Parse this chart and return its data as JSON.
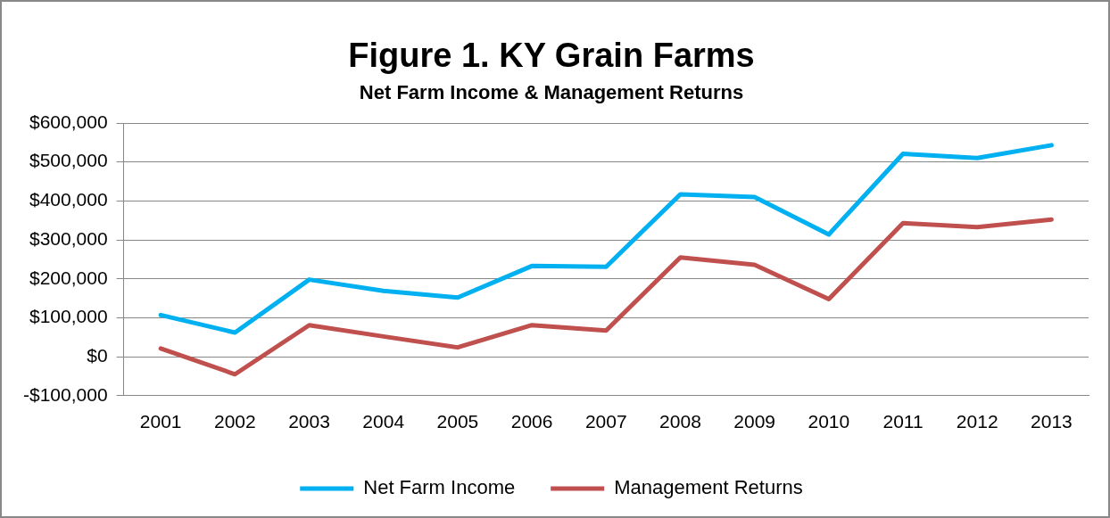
{
  "chart_data": {
    "type": "line",
    "title": "Figure 1. KY Grain Farms",
    "subtitle": "Net Farm Income & Management Returns",
    "categories": [
      "2001",
      "2002",
      "2003",
      "2004",
      "2005",
      "2006",
      "2007",
      "2008",
      "2009",
      "2010",
      "2011",
      "2012",
      "2013"
    ],
    "series": [
      {
        "name": "Net Farm Income",
        "color": "#00b0f0",
        "values": [
          107000,
          62000,
          198000,
          169000,
          152000,
          233000,
          231000,
          417000,
          410000,
          314000,
          521000,
          510000,
          543000
        ]
      },
      {
        "name": "Management Returns",
        "color": "#c0504d",
        "values": [
          21000,
          -45000,
          81000,
          52000,
          24000,
          81000,
          67000,
          255000,
          236000,
          148000,
          343000,
          333000,
          352000
        ]
      }
    ],
    "ylim": [
      -100000,
      600000
    ],
    "yticks": [
      {
        "value": -100000,
        "label": "-$100,000"
      },
      {
        "value": 0,
        "label": "$0"
      },
      {
        "value": 100000,
        "label": "$100,000"
      },
      {
        "value": 200000,
        "label": "$200,000"
      },
      {
        "value": 300000,
        "label": "$300,000"
      },
      {
        "value": 400000,
        "label": "$400,000"
      },
      {
        "value": 500000,
        "label": "$500,000"
      },
      {
        "value": 600000,
        "label": "$600,000"
      }
    ],
    "grid": "y",
    "legend": "bottom",
    "marker": "none",
    "line_style": "solid"
  }
}
